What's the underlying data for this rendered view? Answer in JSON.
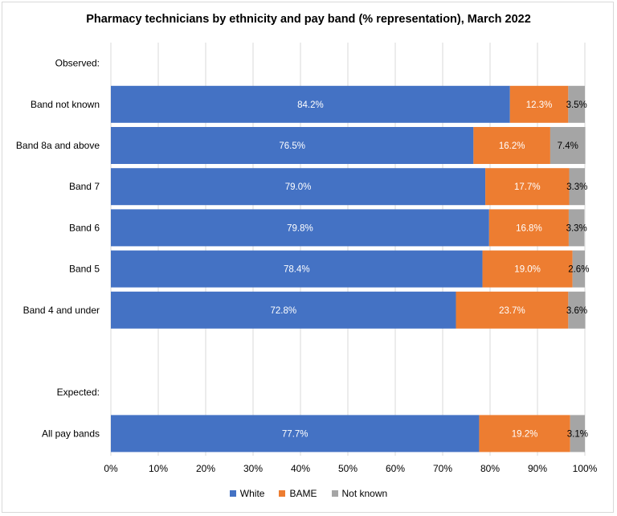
{
  "chart_data": {
    "type": "bar",
    "orientation": "horizontal",
    "stacked": true,
    "title": "Pharmacy technicians by ethnicity and pay band (% representation), March 2022",
    "xlim": [
      0,
      100
    ],
    "x_ticks": [
      "0%",
      "10%",
      "20%",
      "30%",
      "40%",
      "50%",
      "60%",
      "70%",
      "80%",
      "90%",
      "100%"
    ],
    "grid": true,
    "legend_position": "bottom",
    "section_labels": [
      "Observed:",
      "Expected:"
    ],
    "categories": [
      "Band not known",
      "Band 8a and above",
      "Band 7",
      "Band 6",
      "Band 5",
      "Band 4 and under",
      "All pay bands"
    ],
    "series": [
      {
        "name": "White",
        "color": "#4472c4",
        "values": [
          84.2,
          76.5,
          79.0,
          79.8,
          78.4,
          72.8,
          77.7
        ],
        "labels": [
          "84.2%",
          "76.5%",
          "79.0%",
          "79.8%",
          "78.4%",
          "72.8%",
          "77.7%"
        ]
      },
      {
        "name": "BAME",
        "color": "#ed7d31",
        "values": [
          12.3,
          16.2,
          17.7,
          16.8,
          19.0,
          23.7,
          19.2
        ],
        "labels": [
          "12.3%",
          "16.2%",
          "17.7%",
          "16.8%",
          "19.0%",
          "23.7%",
          "19.2%"
        ]
      },
      {
        "name": "Not known",
        "color": "#a5a5a5",
        "values": [
          3.5,
          7.4,
          3.3,
          3.3,
          2.6,
          3.6,
          3.1
        ],
        "labels": [
          "3.5%",
          "7.4%",
          "3.3%",
          "3.3%",
          "2.6%",
          "3.6%",
          "3.1%"
        ]
      }
    ]
  }
}
